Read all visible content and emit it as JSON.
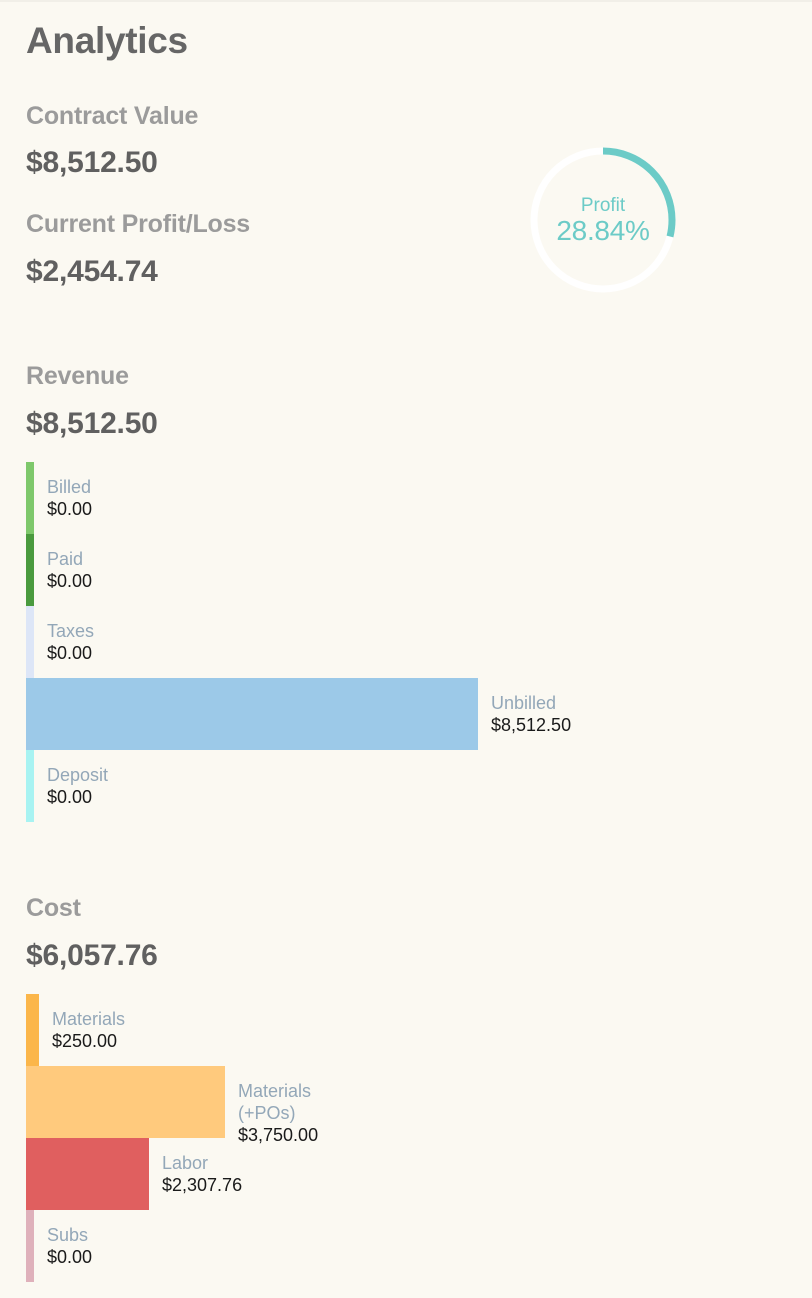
{
  "page": {
    "title": "Analytics"
  },
  "summary": {
    "contract_value_label": "Contract Value",
    "contract_value": "$8,512.50",
    "profit_loss_label": "Current Profit/Loss",
    "profit_loss": "$2,454.74"
  },
  "profit_ring": {
    "label": "Profit",
    "value_text": "28.84%",
    "fraction": 0.2884,
    "color": "#6ccbc7",
    "track_color": "#ffffff"
  },
  "revenue": {
    "label": "Revenue",
    "total": "$8,512.50",
    "max_value": 8512.5,
    "items": [
      {
        "name": "Billed",
        "amount": "$0.00",
        "value": 0,
        "color": "#7ec86b"
      },
      {
        "name": "Paid",
        "amount": "$0.00",
        "value": 0,
        "color": "#4a9a3e"
      },
      {
        "name": "Taxes",
        "amount": "$0.00",
        "value": 0,
        "color": "#dde6f7"
      },
      {
        "name": "Unbilled",
        "amount": "$8,512.50",
        "value": 8512.5,
        "color": "#9cc9e8"
      },
      {
        "name": "Deposit",
        "amount": "$0.00",
        "value": 0,
        "color": "#a8f3f2"
      }
    ]
  },
  "cost": {
    "label": "Cost",
    "total": "$6,057.76",
    "max_value": 8512.5,
    "items": [
      {
        "name": "Materials",
        "amount": "$250.00",
        "value": 250,
        "color": "#fbb64a"
      },
      {
        "name": "Materials (+POs)",
        "amount": "$3,750.00",
        "value": 3750,
        "color": "#ffca7d"
      },
      {
        "name": "Labor",
        "amount": "$2,307.76",
        "value": 2307.76,
        "color": "#e05f5f"
      },
      {
        "name": "Subs",
        "amount": "$0.00",
        "value": 0,
        "color": "#dfb1bb"
      }
    ]
  }
}
